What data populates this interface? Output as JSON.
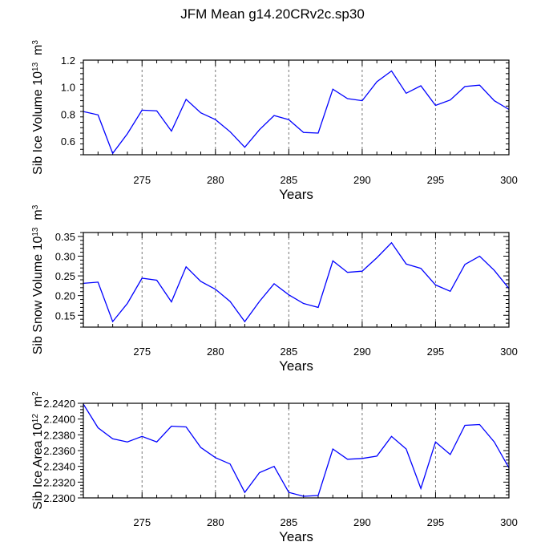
{
  "page_title": "JFM Mean g14.20CRv2c.sp30",
  "chart_data": [
    {
      "type": "line",
      "ylabel": "Sib Ice Volume",
      "ylabel_exp": "10",
      "ylabel_exp_sup": "13",
      "ylabel_unit": "m",
      "ylabel_unit_sup": "3",
      "xlabel": "Years",
      "xlim": [
        271,
        300
      ],
      "ylim": [
        0.5,
        1.2
      ],
      "xticks": [
        275,
        280,
        285,
        290,
        295,
        300
      ],
      "xtick_labels": [
        "275",
        "280",
        "285",
        "290",
        "295",
        "300"
      ],
      "yticks": [
        0.6,
        0.8,
        1.0,
        1.2
      ],
      "ytick_labels": [
        "0.6",
        "0.8",
        "1.0",
        "1.2"
      ],
      "color": "#0000ff",
      "x": [
        271,
        272,
        273,
        274,
        275,
        276,
        277,
        278,
        279,
        280,
        281,
        282,
        283,
        284,
        285,
        286,
        287,
        288,
        289,
        290,
        291,
        292,
        293,
        294,
        295,
        296,
        297,
        298,
        299,
        300
      ],
      "values": [
        0.82,
        0.795,
        0.51,
        0.655,
        0.83,
        0.825,
        0.675,
        0.91,
        0.81,
        0.76,
        0.67,
        0.555,
        0.685,
        0.79,
        0.76,
        0.665,
        0.66,
        0.985,
        0.915,
        0.9,
        1.04,
        1.12,
        0.955,
        1.01,
        0.865,
        0.905,
        1.005,
        1.015,
        0.9,
        0.835
      ]
    },
    {
      "type": "line",
      "ylabel": "Sib Snow Volume",
      "ylabel_exp": "10",
      "ylabel_exp_sup": "13",
      "ylabel_unit": "m",
      "ylabel_unit_sup": "3",
      "xlabel": "Years",
      "xlim": [
        271,
        300
      ],
      "ylim": [
        0.12,
        0.36
      ],
      "xticks": [
        275,
        280,
        285,
        290,
        295,
        300
      ],
      "xtick_labels": [
        "275",
        "280",
        "285",
        "290",
        "295",
        "300"
      ],
      "yticks": [
        0.15,
        0.2,
        0.25,
        0.3,
        0.35
      ],
      "ytick_labels": [
        "0.15",
        "0.20",
        "0.25",
        "0.30",
        "0.35"
      ],
      "color": "#0000ff",
      "x": [
        271,
        272,
        273,
        274,
        275,
        276,
        277,
        278,
        279,
        280,
        281,
        282,
        283,
        284,
        285,
        286,
        287,
        288,
        289,
        290,
        291,
        292,
        293,
        294,
        295,
        296,
        297,
        298,
        299,
        300
      ],
      "values": [
        0.231,
        0.234,
        0.134,
        0.18,
        0.244,
        0.239,
        0.184,
        0.273,
        0.236,
        0.216,
        0.185,
        0.134,
        0.185,
        0.23,
        0.202,
        0.18,
        0.17,
        0.288,
        0.259,
        0.262,
        0.296,
        0.334,
        0.28,
        0.269,
        0.227,
        0.211,
        0.279,
        0.3,
        0.264,
        0.218
      ]
    },
    {
      "type": "line",
      "ylabel": "Sib Ice Area",
      "ylabel_exp": "10",
      "ylabel_exp_sup": "12",
      "ylabel_unit": "m",
      "ylabel_unit_sup": "2",
      "xlabel": "Years",
      "xlim": [
        271,
        300
      ],
      "ylim": [
        2.23,
        2.242
      ],
      "xticks": [
        275,
        280,
        285,
        290,
        295,
        300
      ],
      "xtick_labels": [
        "275",
        "280",
        "285",
        "290",
        "295",
        "300"
      ],
      "yticks": [
        2.23,
        2.232,
        2.234,
        2.236,
        2.238,
        2.24,
        2.242
      ],
      "ytick_labels": [
        "2.2300",
        "2.2320",
        "2.2340",
        "2.2360",
        "2.2380",
        "2.2400",
        "2.2420"
      ],
      "color": "#0000ff",
      "x": [
        271,
        272,
        273,
        274,
        275,
        276,
        277,
        278,
        279,
        280,
        281,
        282,
        283,
        284,
        285,
        286,
        287,
        288,
        289,
        290,
        291,
        292,
        293,
        294,
        295,
        296,
        297,
        298,
        299,
        300
      ],
      "values": [
        2.2419,
        2.2389,
        2.2375,
        2.2371,
        2.2378,
        2.2371,
        2.2391,
        2.239,
        2.2364,
        2.2351,
        2.2343,
        2.2307,
        2.2332,
        2.234,
        2.2307,
        2.2302,
        2.2303,
        2.2362,
        2.2349,
        2.235,
        2.2353,
        2.2378,
        2.2362,
        2.2312,
        2.2371,
        2.2355,
        2.2392,
        2.2393,
        2.2371,
        2.2338
      ]
    }
  ]
}
